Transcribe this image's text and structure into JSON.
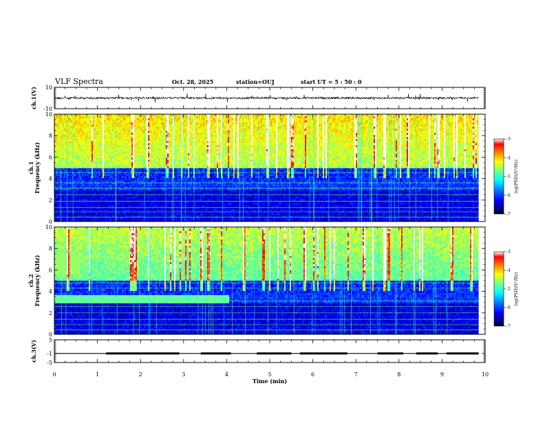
{
  "header": {
    "title": "VLF Spectra",
    "date": "Oct. 28, 2025",
    "station": "station=OUJ",
    "start_ut": "start UT =  5 : 50 : 0"
  },
  "chart_data": [
    {
      "type": "line",
      "panel": "ch1-waveform",
      "ylabel": "ch.1(V)",
      "ylim": [
        -10,
        10
      ],
      "y_ticks": [
        "10",
        "-10"
      ],
      "baseline": 0,
      "color": "#000000"
    },
    {
      "type": "heatmap",
      "panel": "ch1-spectrogram",
      "ylabel": "ch.1\nFrequency (kHz)",
      "ylabel_lines": [
        "ch.1",
        "Frequency (kHz)"
      ],
      "ylim": [
        0,
        10
      ],
      "y_ticks": [
        "0",
        "2",
        "4",
        "6",
        "8",
        "10"
      ],
      "colorbar": {
        "label": "log(PSD)(V²/Hz)",
        "range": [
          -7,
          -3
        ],
        "ticks": [
          "-3",
          "-4",
          "-5",
          "-6",
          "-7"
        ]
      }
    },
    {
      "type": "heatmap",
      "panel": "ch2-spectrogram",
      "ylabel": "ch.2\nFrequency (kHz)",
      "ylabel_lines": [
        "ch.2",
        "Frequency (kHz)"
      ],
      "ylim": [
        0,
        10
      ],
      "y_ticks": [
        "0",
        "2",
        "4",
        "6",
        "8",
        "10"
      ],
      "colorbar": {
        "label": "log(PSD)(V²/Hz)",
        "range": [
          -7,
          -3
        ],
        "ticks": [
          "-3",
          "-4",
          "-5",
          "-6",
          "-7"
        ]
      }
    },
    {
      "type": "line",
      "panel": "ch3-waveform",
      "ylabel": "ch.3(V)",
      "ylim": [
        -5,
        5
      ],
      "y_ticks": [
        "5",
        "-1",
        "-5"
      ],
      "baseline": -1,
      "color": "#000000"
    }
  ],
  "x_axis": {
    "label": "Time (min)",
    "range": [
      0,
      10
    ],
    "ticks": [
      "0",
      "1",
      "2",
      "3",
      "4",
      "5",
      "6",
      "7",
      "8",
      "9",
      "10"
    ],
    "data_end": 9.85
  },
  "colors": {
    "colormap": [
      "#000000",
      "#00007f",
      "#0000ff",
      "#007fff",
      "#00ffff",
      "#7fff7f",
      "#ffff00",
      "#ff7f00",
      "#ff0000",
      "#ffffff"
    ]
  }
}
